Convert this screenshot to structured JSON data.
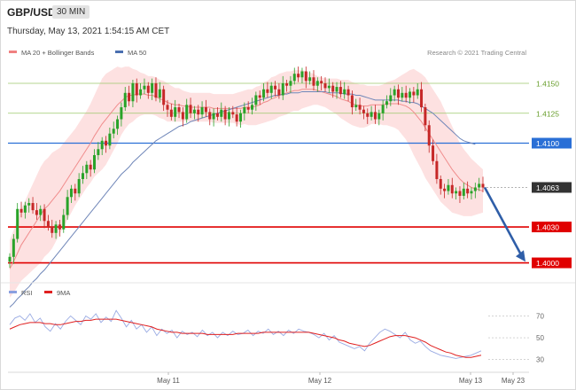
{
  "header": {
    "symbol": "GBP/USD",
    "timeframe": "30 MIN",
    "datetime": "Thursday, May 13, 2021 1:54:15 AM CET"
  },
  "chart_data": [
    {
      "type": "candlestick",
      "legend": [
        {
          "name": "MA 20 + Bollinger Bands",
          "color": "#f08080"
        },
        {
          "name": "MA 50",
          "color": "#4a6fb0"
        }
      ],
      "credit": "Research © 2021 Trading Central",
      "ylim": [
        3993,
        4170
      ],
      "y_unit_note": "prices are expressed in pips above 1.0000 scale factor via labels",
      "x_labels": [
        "May 11",
        "May 12",
        "May 13",
        "May 23"
      ],
      "last_price": {
        "value": 1.4063,
        "label": "1.4063",
        "color": "#333333"
      },
      "levels": [
        {
          "value": 1.415,
          "label": "1.4150",
          "line_color": "#9cc96b",
          "badge_color": "",
          "kind": "thin"
        },
        {
          "value": 1.4125,
          "label": "1.4125",
          "line_color": "#9cc96b",
          "badge_color": "",
          "kind": "thin"
        },
        {
          "value": 1.41,
          "label": "1.4100",
          "line_color": "#2a6fd6",
          "badge_color": "#2a6fd6",
          "kind": "mid"
        },
        {
          "value": 1.403,
          "label": "1.4030",
          "line_color": "#e00000",
          "badge_color": "#e00000",
          "kind": "thick"
        },
        {
          "value": 1.4,
          "label": "1.4000",
          "line_color": "#e00000",
          "badge_color": "#e00000",
          "kind": "thick"
        }
      ],
      "closes": [
        4005,
        4020,
        4045,
        4042,
        4048,
        4050,
        4044,
        4040,
        4045,
        4035,
        4030,
        4025,
        4032,
        4028,
        4040,
        4055,
        4062,
        4058,
        4070,
        4075,
        4082,
        4078,
        4090,
        4095,
        4102,
        4098,
        4108,
        4112,
        4120,
        4130,
        4142,
        4135,
        4150,
        4140,
        4145,
        4148,
        4142,
        4150,
        4138,
        4145,
        4132,
        4128,
        4122,
        4130,
        4126,
        4120,
        4132,
        4125,
        4128,
        4124,
        4130,
        4126,
        4120,
        4125,
        4122,
        4128,
        4120,
        4126,
        4124,
        4118,
        4125,
        4130,
        4128,
        4132,
        4140,
        4138,
        4145,
        4142,
        4148,
        4145,
        4140,
        4150,
        4148,
        4152,
        4158,
        4155,
        4160,
        4152,
        4155,
        4148,
        4152,
        4150,
        4146,
        4148,
        4143,
        4147,
        4141,
        4145,
        4140,
        4130,
        4132,
        4128,
        4125,
        4122,
        4126,
        4120,
        4125,
        4132,
        4135,
        4140,
        4145,
        4138,
        4142,
        4138,
        4143,
        4140,
        4145,
        4130,
        4115,
        4098,
        4085,
        4070,
        4062,
        4060,
        4065,
        4058,
        4060,
        4056,
        4062,
        4058,
        4060,
        4063,
        4066,
        4063
      ],
      "ma20": [
        3995,
        4001,
        4008,
        4015,
        4020,
        4025,
        4030,
        4035,
        4040,
        4045,
        4048,
        4052,
        4056,
        4060,
        4065,
        4070,
        4075,
        4080,
        4085,
        4090,
        4095,
        4100,
        4106,
        4111,
        4116,
        4120,
        4124,
        4128,
        4132,
        4135,
        4138,
        4140,
        4140,
        4141,
        4141,
        4141,
        4140,
        4140,
        4139,
        4137,
        4136,
        4134,
        4133,
        4132,
        4132,
        4131,
        4131,
        4130,
        4130,
        4130,
        4130,
        4130,
        4130,
        4129,
        4129,
        4129,
        4129,
        4129,
        4129,
        4129,
        4129,
        4130,
        4130,
        4130,
        4131,
        4132,
        4134,
        4135,
        4137,
        4138,
        4140,
        4141,
        4142,
        4143,
        4144,
        4144,
        4145,
        4145,
        4145,
        4145,
        4144,
        4143,
        4142,
        4141,
        4140,
        4139,
        4137,
        4136,
        4135,
        4133,
        4132,
        4131,
        4131,
        4131,
        4132,
        4132,
        4132,
        4132,
        4133,
        4133,
        4133,
        4133,
        4132,
        4131,
        4129,
        4126,
        4122,
        4118,
        4113,
        4108,
        4103,
        4098,
        4093,
        4088,
        4083,
        4078,
        4074,
        4070,
        4067,
        4065,
        4063,
        4062,
        4061,
        4060
      ],
      "bb_width": [
        24,
        26,
        28,
        30,
        32,
        34,
        36,
        38,
        40,
        40,
        40,
        40,
        38,
        36,
        35,
        34,
        33,
        32,
        32,
        32,
        32,
        33,
        34,
        36,
        38,
        38,
        36,
        34,
        32,
        28,
        26,
        24,
        22,
        20,
        18,
        17,
        16,
        16,
        16,
        16,
        16,
        16,
        15,
        14,
        14,
        13,
        12,
        12,
        12,
        12,
        12,
        12,
        12,
        12,
        12,
        12,
        12,
        12,
        12,
        13,
        14,
        14,
        15,
        15,
        16,
        16,
        17,
        17,
        18,
        18,
        18,
        18,
        18,
        17,
        17,
        17,
        16,
        15,
        14,
        13,
        12,
        12,
        12,
        13,
        14,
        15,
        16,
        17,
        18,
        18,
        18,
        18,
        18,
        17,
        16,
        16,
        16,
        17,
        18,
        19,
        20,
        22,
        25,
        28,
        32,
        36,
        38,
        40,
        42,
        42,
        42,
        42,
        42,
        40,
        38,
        36,
        33,
        30,
        28,
        26,
        24,
        22,
        20,
        18
      ],
      "ma50": [
        3963,
        3966,
        3970,
        3973,
        3977,
        3980,
        3984,
        3987,
        3991,
        3994,
        3998,
        4002,
        4006,
        4010,
        4014,
        4018,
        4022,
        4026,
        4030,
        4034,
        4038,
        4042,
        4046,
        4050,
        4054,
        4058,
        4062,
        4066,
        4070,
        4074,
        4077,
        4080,
        4084,
        4087,
        4090,
        4093,
        4096,
        4099,
        4102,
        4104,
        4106,
        4108,
        4110,
        4112,
        4114,
        4115,
        4116,
        4118,
        4119,
        4120,
        4121,
        4122,
        4123,
        4124,
        4125,
        4126,
        4127,
        4128,
        4129,
        4130,
        4131,
        4132,
        4133,
        4134,
        4135,
        4136,
        4137,
        4138,
        4139,
        4140,
        4140,
        4141,
        4141,
        4142,
        4142,
        4142,
        4143,
        4143,
        4143,
        4143,
        4143,
        4143,
        4143,
        4142,
        4142,
        4142,
        4142,
        4141,
        4141,
        4141,
        4140,
        4140,
        4139,
        4138,
        4137,
        4136,
        4136,
        4136,
        4136,
        4136,
        4136,
        4136,
        4135,
        4135,
        4134,
        4134,
        4133,
        4131,
        4129,
        4127,
        4125,
        4122,
        4119,
        4116,
        4113,
        4110,
        4107,
        4104,
        4102,
        4101,
        4100,
        4099
      ],
      "forecast_arrow": {
        "from": 4063,
        "to": 4001
      }
    },
    {
      "type": "line",
      "legend": [
        {
          "name": "RSI",
          "color": "#8aa0e0"
        },
        {
          "name": "9MA",
          "color": "#e02020"
        }
      ],
      "ylim": [
        20,
        85
      ],
      "y_ticks": [
        30,
        50,
        70
      ],
      "rsi": [
        62,
        68,
        70,
        66,
        72,
        64,
        68,
        60,
        56,
        63,
        58,
        65,
        70,
        66,
        62,
        70,
        67,
        72,
        64,
        69,
        65,
        75,
        68,
        60,
        66,
        58,
        62,
        55,
        60,
        52,
        58,
        54,
        57,
        50,
        56,
        53,
        55,
        51,
        57,
        52,
        55,
        50,
        55,
        52,
        56,
        53,
        54,
        57,
        52,
        56,
        54,
        58,
        53,
        56,
        52,
        57,
        54,
        58,
        56,
        55,
        53,
        50,
        54,
        48,
        52,
        46,
        44,
        42,
        40,
        42,
        38,
        45,
        50,
        55,
        58,
        56,
        53,
        50,
        55,
        48,
        45,
        47,
        42,
        38,
        36,
        34,
        33,
        32,
        31,
        32,
        33,
        34,
        36,
        38
      ],
      "ma9": [
        58,
        60,
        62,
        63,
        64,
        64,
        64,
        63,
        63,
        62,
        62,
        63,
        64,
        65,
        65,
        66,
        66,
        67,
        67,
        67,
        67,
        67,
        66,
        65,
        64,
        63,
        62,
        61,
        60,
        58,
        57,
        56,
        55,
        55,
        54,
        54,
        54,
        54,
        54,
        53,
        53,
        53,
        53,
        53,
        53,
        54,
        54,
        54,
        54,
        54,
        55,
        55,
        55,
        55,
        55,
        55,
        55,
        55,
        55,
        55,
        54,
        53,
        52,
        51,
        50,
        48,
        47,
        45,
        44,
        43,
        42,
        43,
        45,
        47,
        49,
        51,
        52,
        52,
        52,
        51,
        50,
        48,
        46,
        43,
        41,
        39,
        37,
        36,
        34,
        33,
        32,
        32,
        33,
        34
      ]
    }
  ]
}
